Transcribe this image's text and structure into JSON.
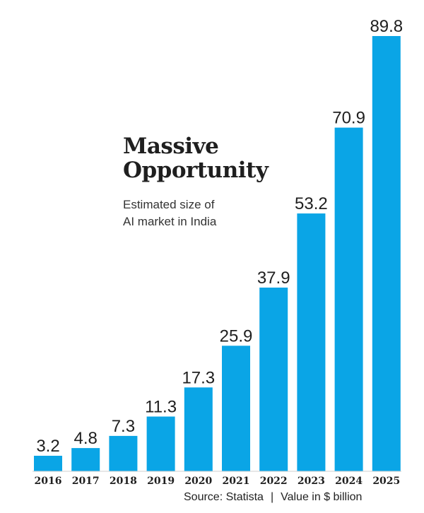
{
  "chart_data": {
    "type": "bar",
    "title_lines": [
      "Massive",
      "Opportunity"
    ],
    "subtitle_lines": [
      "Estimated size of",
      "AI market in India"
    ],
    "categories": [
      "2016",
      "2017",
      "2018",
      "2019",
      "2020",
      "2021",
      "2022",
      "2023",
      "2024",
      "2025"
    ],
    "values": [
      3.2,
      4.8,
      7.3,
      11.3,
      17.3,
      25.9,
      37.9,
      53.2,
      70.9,
      89.8
    ],
    "value_labels": [
      "3.2",
      "4.8",
      "7.3",
      "11.3",
      "17.3",
      "25.9",
      "37.9",
      "53.2",
      "70.9",
      "89.8"
    ],
    "xlabel": "",
    "ylabel": "",
    "ylim": [
      0,
      89.8
    ],
    "grid": false,
    "bar_color": "#0aa5e6"
  },
  "footer": {
    "source": "Source: Statista",
    "separator": "|",
    "unit_note": "Value in $ billion"
  }
}
